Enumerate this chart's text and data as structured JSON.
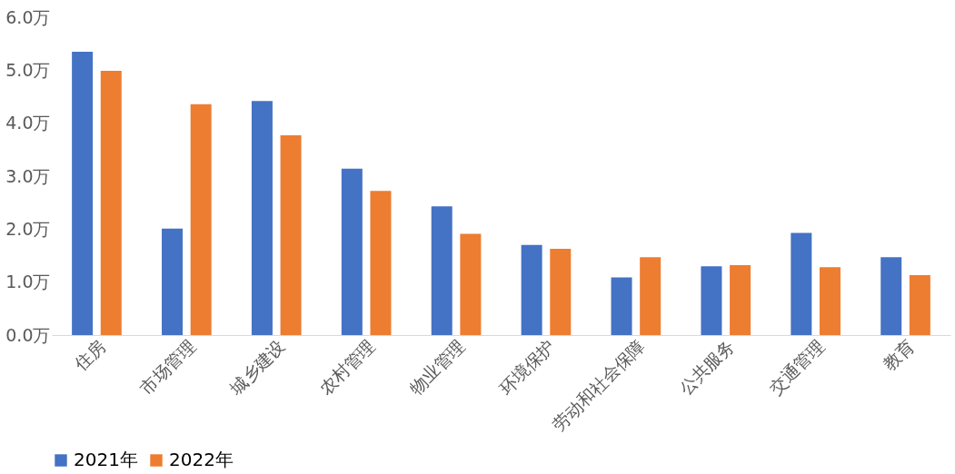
{
  "chart_data": {
    "type": "bar",
    "categories": [
      "住房",
      "市场管理",
      "城乡建设",
      "农村管理",
      "物业管理",
      "环境保护",
      "劳动和社会保障",
      "公共服务",
      "交通管理",
      "教育"
    ],
    "series": [
      {
        "name": "2021年",
        "color": "#4472c4",
        "values": [
          5.35,
          2.01,
          4.42,
          3.14,
          2.43,
          1.7,
          1.09,
          1.3,
          1.93,
          1.47
        ]
      },
      {
        "name": "2022年",
        "color": "#ed7d31",
        "values": [
          4.99,
          4.36,
          3.77,
          2.72,
          1.91,
          1.63,
          1.47,
          1.32,
          1.28,
          1.13
        ]
      }
    ],
    "ylim": [
      0,
      6
    ],
    "yticks": [
      {
        "value": 0,
        "label": "0.0万"
      },
      {
        "value": 1,
        "label": "1.0万"
      },
      {
        "value": 2,
        "label": "2.0万"
      },
      {
        "value": 3,
        "label": "3.0万"
      },
      {
        "value": 4,
        "label": "4.0万"
      },
      {
        "value": 5,
        "label": "5.0万"
      },
      {
        "value": 6,
        "label": "6.0万"
      }
    ],
    "grid": false,
    "legend": "bottom"
  }
}
